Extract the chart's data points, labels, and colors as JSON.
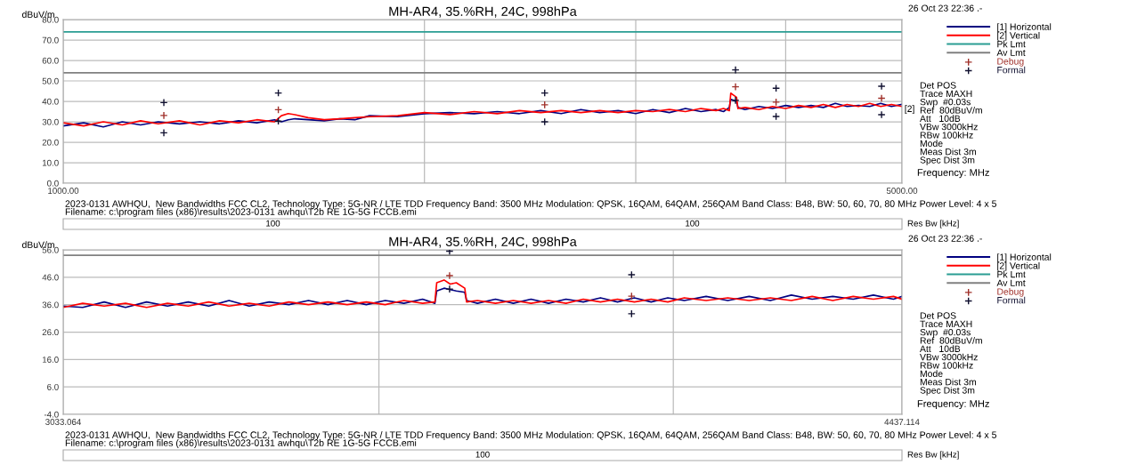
{
  "chart_data": [
    {
      "type": "line",
      "title": "MH-AR4, 35.%RH, 24C, 998hPa",
      "xlabel": "Frequency: MHz",
      "ylabel": "dBuV/m",
      "log": "x",
      "grid": true,
      "legend": "right",
      "xlim": [
        1000,
        5000
      ],
      "xticks": [
        {
          "value": 1000,
          "label": "1000.00"
        },
        {
          "value": 2000,
          "label": null
        },
        {
          "value": 3000,
          "label": null
        },
        {
          "value": 4000,
          "label": null
        },
        {
          "value": 5000,
          "label": "5000.00"
        }
      ],
      "ylim": [
        0,
        80
      ],
      "yticks": [
        {
          "value": 0,
          "label": "0.0"
        },
        {
          "value": 10,
          "label": "10.0"
        },
        {
          "value": 20,
          "label": "20.0"
        },
        {
          "value": 30,
          "label": "30.0"
        },
        {
          "value": 40,
          "label": "40.0"
        },
        {
          "value": 50,
          "label": "50.0"
        },
        {
          "value": 60,
          "label": "60.0"
        },
        {
          "value": 70,
          "label": "70.0"
        },
        {
          "value": 80,
          "label": "80.0"
        }
      ],
      "x": [
        1000,
        1040,
        1080,
        1120,
        1160,
        1200,
        1250,
        1300,
        1350,
        1400,
        1450,
        1500,
        1520,
        1540,
        1560,
        1600,
        1650,
        1700,
        1750,
        1800,
        1900,
        2000,
        2100,
        2200,
        2300,
        2400,
        2500,
        2600,
        2700,
        2800,
        2900,
        3000,
        3100,
        3200,
        3300,
        3400,
        3500,
        3550,
        3590,
        3600,
        3620,
        3640,
        3650,
        3700,
        3800,
        3900,
        4000,
        4100,
        4200,
        4300,
        4400,
        4500,
        4600,
        4700,
        4800,
        4900,
        5000
      ],
      "series": [
        {
          "name": "[1] Horizontal",
          "color": "#000080",
          "values": [
            28,
            29.5,
            27.5,
            30,
            28.5,
            30,
            29,
            30,
            29,
            30.5,
            29.5,
            31,
            30,
            31,
            31.5,
            31,
            30.5,
            31.5,
            31,
            33,
            32.5,
            34,
            34.5,
            34,
            35,
            34,
            35.5,
            34,
            36,
            34.5,
            35.5,
            34,
            36,
            34.5,
            36.5,
            35,
            36,
            35,
            37,
            41,
            40.5,
            40,
            37,
            36,
            37.5,
            36.5,
            38,
            37,
            38,
            37,
            39,
            37.5,
            38,
            37.5,
            39,
            37.5,
            38.5
          ]
        },
        {
          "name": "[2] Vertical",
          "color": "#ff0000",
          "values": [
            29.5,
            28,
            30,
            28.5,
            30.5,
            29,
            30.5,
            28.5,
            30.5,
            29.5,
            31,
            30,
            33,
            34,
            33.5,
            32,
            31,
            31.5,
            32,
            32.5,
            33,
            34.5,
            33.5,
            35,
            34,
            35.5,
            34.5,
            35.5,
            34.5,
            35.5,
            34.5,
            35.5,
            35,
            36,
            35,
            36.5,
            35.5,
            36.5,
            35.5,
            44,
            43,
            42,
            36.5,
            37,
            36,
            37.5,
            36.5,
            38,
            37,
            38.5,
            37,
            38.5,
            37.5,
            39,
            37.5,
            38.5,
            37.5
          ]
        },
        {
          "name": "Pk Lmt",
          "color": "#2a9d93",
          "x": [
            1000,
            5000
          ],
          "values": [
            74,
            74
          ]
        },
        {
          "name": "Av Lmt",
          "color": "#808080",
          "x": [
            1000,
            5000
          ],
          "values": [
            54,
            54
          ]
        },
        {
          "name": "Debug",
          "type": "scatter",
          "marker": "cross",
          "color": "#a0302a",
          "x": [
            1213,
            1511,
            2519,
            3633,
            3927,
            4808
          ],
          "values": [
            33.1,
            35.9,
            38.3,
            47.1,
            39.6,
            41.5
          ]
        },
        {
          "name": "Formal",
          "type": "scatter",
          "marker": "cross",
          "color": "#101030",
          "x": [
            1213,
            1213,
            1511,
            1511,
            2519,
            2519,
            3633,
            3633,
            3927,
            3927,
            4808,
            4808
          ],
          "values": [
            39.4,
            24.6,
            44.1,
            30.3,
            44.1,
            30.0,
            55.4,
            40.5,
            46.4,
            32.6,
            47.4,
            33.5
          ]
        }
      ],
      "annotations": [
        "26 Oct 23 22:36 .-",
        "Det POS\nTrace MAXH\nSwp  #0.03s\nRef  80dBuV/m\nAtt   10dB\nVBw 3000kHz\nRBw 100kHz\nMode\nMeas Dist 3m\nSpec Dist 3m",
        "2023-0131 AWHQU,  New Bandwidths FCC CL2, Technology Type: 5G-NR / LTE TDD Frequency Band: 3500 MHz Modulation: QPSK, 16QAM, 64QAM, 256QAM Band Class: B48, BW: 50, 60, 70, 80 MHz Power Level: 4 x 5",
        "Filename: c:\\program files (x86)\\results\\2023-0131 awhqu\\T2b RE 1G-5G FCCB.emi",
        {
          "text": "[2]",
          "x": 5000,
          "y": 36
        },
        "100",
        "100",
        "Res Bw [kHz]"
      ]
    },
    {
      "type": "line",
      "title": "MH-AR4, 35.%RH, 24C, 998hPa",
      "xlabel": "Frequency: MHz",
      "ylabel": "dBuV/m",
      "log": "x",
      "grid": true,
      "legend": "right",
      "xlim": [
        3033.064,
        4437.114
      ],
      "xticks": [
        {
          "value": 3033.064,
          "label": "3033.064"
        },
        {
          "value": 3500,
          "label": null
        },
        {
          "value": 4000,
          "label": null
        },
        {
          "value": 4437.114,
          "label": "4437.114"
        }
      ],
      "ylim": [
        -4,
        56
      ],
      "yticks": [
        {
          "value": -4,
          "label": "-4.0"
        },
        {
          "value": 6,
          "label": "6.0"
        },
        {
          "value": 16,
          "label": "16.0"
        },
        {
          "value": 26,
          "label": "26.0"
        },
        {
          "value": 36,
          "label": "36.0"
        },
        {
          "value": 46,
          "label": "46.0"
        },
        {
          "value": 56,
          "label": "56.0"
        }
      ],
      "x": [
        3033.064,
        3060,
        3090,
        3120,
        3150,
        3180,
        3210,
        3240,
        3270,
        3300,
        3330,
        3360,
        3390,
        3420,
        3450,
        3480,
        3510,
        3540,
        3570,
        3590,
        3593,
        3605,
        3615,
        3625,
        3639,
        3642,
        3660,
        3690,
        3720,
        3750,
        3780,
        3810,
        3840,
        3870,
        3900,
        3930,
        3960,
        3990,
        4020,
        4060,
        4100,
        4140,
        4180,
        4220,
        4260,
        4300,
        4340,
        4380,
        4420,
        4437.114
      ],
      "series": [
        {
          "name": "[1] Horizontal",
          "color": "#000080",
          "values": [
            35.5,
            35,
            37,
            35,
            37,
            35.5,
            37,
            35.5,
            37.5,
            35.5,
            37,
            36,
            37.5,
            36,
            37.5,
            36,
            37.5,
            36.5,
            38,
            36.5,
            41,
            42,
            41.5,
            41,
            40.5,
            37.5,
            36.5,
            38,
            36.5,
            38,
            36.5,
            38,
            37,
            38.5,
            37,
            38.5,
            37,
            38.5,
            37.5,
            39,
            37.5,
            39,
            37.5,
            39.5,
            38,
            39,
            38,
            39.5,
            38,
            39
          ]
        },
        {
          "name": "[2] Vertical",
          "color": "#ff0000",
          "values": [
            35,
            36.5,
            35.5,
            36.5,
            35,
            36.5,
            35.5,
            37,
            35.5,
            36.5,
            35.5,
            37,
            36,
            37,
            36,
            37,
            36,
            37.5,
            36.5,
            37,
            44,
            45,
            43.5,
            44,
            42,
            37,
            37.5,
            36.5,
            37.5,
            36.5,
            37.5,
            36.5,
            38,
            37,
            38,
            37,
            38,
            37,
            38.5,
            37.5,
            38.5,
            37.5,
            38.5,
            37.5,
            39,
            37.5,
            39,
            38,
            39,
            38
          ]
        },
        {
          "name": "Pk Lmt",
          "color": "#2a9d93",
          "values": [
            null,
            null,
            null,
            null,
            null,
            null,
            null,
            null,
            null,
            null,
            null,
            null,
            null,
            null,
            null,
            null,
            null,
            null,
            null,
            null,
            null,
            null,
            null,
            null,
            null,
            null,
            null,
            null,
            null,
            null,
            null,
            null,
            null,
            null,
            null,
            null,
            null,
            null,
            null,
            null,
            null,
            null,
            null,
            null,
            null,
            null,
            null,
            null,
            null,
            null
          ]
        },
        {
          "name": "Av Lmt",
          "color": "#808080",
          "x": [
            3033.064,
            4437.114
          ],
          "values": [
            54,
            54
          ]
        },
        {
          "name": "Debug",
          "type": "scatter",
          "marker": "cross",
          "color": "#a0302a",
          "x": [
            3614,
            3925
          ],
          "values": [
            46.6,
            39.1
          ]
        },
        {
          "name": "Formal",
          "type": "scatter",
          "marker": "cross",
          "color": "#101030",
          "x": [
            3614,
            3614,
            3925,
            3925
          ],
          "values": [
            55.5,
            41.7,
            46.9,
            32.7
          ]
        }
      ],
      "annotations": [
        "26 Oct 23 22:36 .-",
        "Det POS\nTrace MAXH\nSwp  #0.03s\nRef  80dBuV/m\nAtt   10dB\nVBw 3000kHz\nRBw 100kHz\nMode\nMeas Dist 3m\nSpec Dist 3m",
        "2023-0131 AWHQU,  New Bandwidths FCC CL2, Technology Type: 5G-NR / LTE TDD Frequency Band: 3500 MHz Modulation: QPSK, 16QAM, 64QAM, 256QAM Band Class: B48, BW: 50, 60, 70, 80 MHz Power Level: 4 x 5",
        "Filename: c:\\program files (x86)\\results\\2023-0131 awhqu\\T2b RE 1G-5G FCCB.emi",
        "100",
        "Res Bw [kHz]"
      ]
    }
  ]
}
